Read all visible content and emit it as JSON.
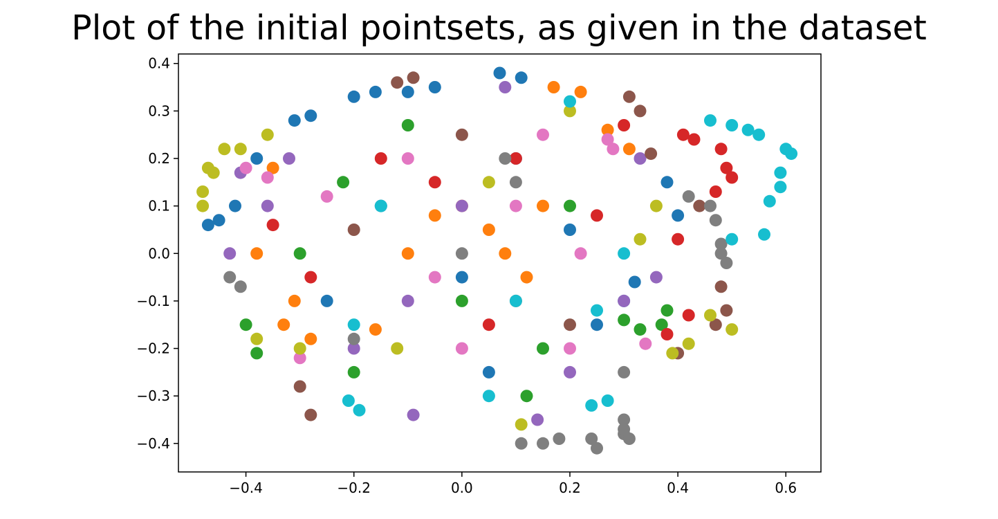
{
  "chart_data": {
    "type": "scatter",
    "title": "Plot of the initial pointsets, as given in the dataset",
    "xlabel": "",
    "ylabel": "",
    "xlim": [
      -0.525,
      0.665
    ],
    "ylim": [
      -0.46,
      0.42
    ],
    "x_ticks": [
      -0.4,
      -0.2,
      0.0,
      0.2,
      0.4,
      0.6
    ],
    "x_tick_labels": [
      "−0.4",
      "−0.2",
      "0.0",
      "0.2",
      "0.4",
      "0.6"
    ],
    "y_ticks": [
      0.4,
      0.3,
      0.2,
      0.1,
      0.0,
      -0.1,
      -0.2,
      -0.3,
      -0.4
    ],
    "y_tick_labels": [
      "0.4",
      "0.3",
      "0.2",
      "0.1",
      "0.0",
      "−0.1",
      "−0.2",
      "−0.3",
      "−0.4"
    ],
    "grid": false,
    "legend": "none",
    "series": [
      {
        "color": "#1f77b4",
        "points": [
          [
            0.07,
            0.38
          ],
          [
            0.11,
            0.37
          ],
          [
            -0.2,
            0.33
          ],
          [
            -0.16,
            0.34
          ],
          [
            -0.45,
            0.07
          ],
          [
            -0.47,
            0.06
          ],
          [
            -0.31,
            0.28
          ],
          [
            -0.28,
            0.29
          ],
          [
            0.4,
            0.08
          ],
          [
            0.3,
            -0.1
          ],
          [
            0.32,
            -0.06
          ],
          [
            -0.05,
            0.35
          ],
          [
            -0.1,
            0.34
          ],
          [
            -0.38,
            0.2
          ],
          [
            -0.42,
            0.1
          ],
          [
            0.25,
            -0.15
          ],
          [
            0.1,
            0.2
          ],
          [
            0.0,
            -0.05
          ],
          [
            -0.15,
            0.1
          ],
          [
            0.2,
            0.05
          ],
          [
            -0.25,
            -0.1
          ],
          [
            0.05,
            -0.25
          ],
          [
            0.38,
            0.15
          ]
        ]
      },
      {
        "color": "#ff7f0e",
        "points": [
          [
            0.17,
            0.35
          ],
          [
            0.22,
            0.34
          ],
          [
            -0.35,
            0.18
          ],
          [
            -0.38,
            0.0
          ],
          [
            -0.31,
            -0.1
          ],
          [
            -0.33,
            -0.15
          ],
          [
            0.05,
            0.05
          ],
          [
            0.0,
            0.1
          ],
          [
            -0.1,
            0.0
          ],
          [
            0.12,
            -0.05
          ],
          [
            0.27,
            0.26
          ],
          [
            0.31,
            0.22
          ],
          [
            -0.16,
            -0.16
          ],
          [
            -0.28,
            -0.18
          ],
          [
            0.15,
            0.1
          ],
          [
            -0.05,
            0.08
          ],
          [
            0.08,
            0.0
          ]
        ]
      },
      {
        "color": "#2ca02c",
        "points": [
          [
            -0.4,
            -0.15
          ],
          [
            -0.38,
            -0.21
          ],
          [
            0.38,
            -0.12
          ],
          [
            0.37,
            -0.15
          ],
          [
            -0.2,
            -0.25
          ],
          [
            0.12,
            -0.3
          ],
          [
            0.3,
            -0.14
          ],
          [
            -0.3,
            0.0
          ],
          [
            0.2,
            0.1
          ],
          [
            -0.1,
            0.27
          ],
          [
            0.0,
            -0.1
          ],
          [
            0.15,
            -0.2
          ],
          [
            -0.22,
            0.15
          ],
          [
            0.33,
            -0.16
          ]
        ]
      },
      {
        "color": "#d62728",
        "points": [
          [
            0.5,
            0.16
          ],
          [
            0.48,
            0.22
          ],
          [
            0.47,
            0.13
          ],
          [
            0.49,
            0.18
          ],
          [
            0.41,
            0.25
          ],
          [
            0.43,
            0.24
          ],
          [
            0.38,
            -0.17
          ],
          [
            0.42,
            -0.13
          ],
          [
            -0.28,
            -0.05
          ],
          [
            0.1,
            0.2
          ],
          [
            -0.15,
            0.2
          ],
          [
            0.25,
            0.08
          ],
          [
            0.3,
            0.27
          ],
          [
            -0.35,
            0.06
          ],
          [
            0.05,
            -0.15
          ],
          [
            0.4,
            0.03
          ],
          [
            -0.05,
            0.15
          ]
        ]
      },
      {
        "color": "#9467bd",
        "points": [
          [
            -0.41,
            0.17
          ],
          [
            -0.43,
            0.0
          ],
          [
            -0.09,
            -0.34
          ],
          [
            0.14,
            -0.35
          ],
          [
            0.33,
            0.2
          ],
          [
            -0.32,
            0.2
          ],
          [
            0.08,
            0.35
          ],
          [
            -0.2,
            -0.2
          ],
          [
            0.3,
            -0.1
          ],
          [
            0.0,
            0.1
          ],
          [
            -0.1,
            -0.1
          ],
          [
            0.2,
            -0.25
          ],
          [
            -0.36,
            0.1
          ],
          [
            0.36,
            -0.05
          ]
        ]
      },
      {
        "color": "#8c564b",
        "points": [
          [
            0.48,
            -0.07
          ],
          [
            0.49,
            -0.12
          ],
          [
            0.47,
            -0.15
          ],
          [
            0.35,
            0.21
          ],
          [
            0.33,
            0.3
          ],
          [
            0.31,
            0.33
          ],
          [
            -0.28,
            -0.34
          ],
          [
            -0.3,
            -0.28
          ],
          [
            -0.09,
            0.37
          ],
          [
            0.4,
            -0.21
          ],
          [
            -0.12,
            0.36
          ],
          [
            0.1,
            -0.1
          ],
          [
            -0.2,
            0.05
          ],
          [
            0.2,
            -0.15
          ],
          [
            0.0,
            0.25
          ],
          [
            0.44,
            0.1
          ]
        ]
      },
      {
        "color": "#e377c2",
        "points": [
          [
            -0.4,
            0.18
          ],
          [
            -0.36,
            0.16
          ],
          [
            0.27,
            0.24
          ],
          [
            0.28,
            0.22
          ],
          [
            0.1,
            0.1
          ],
          [
            -0.1,
            0.2
          ],
          [
            0.2,
            -0.2
          ],
          [
            0.34,
            -0.19
          ],
          [
            -0.25,
            0.12
          ],
          [
            0.15,
            0.25
          ],
          [
            0.0,
            -0.2
          ],
          [
            -0.3,
            -0.22
          ],
          [
            0.22,
            0.0
          ],
          [
            -0.05,
            -0.05
          ]
        ]
      },
      {
        "color": "#7f7f7f",
        "points": [
          [
            0.24,
            -0.39
          ],
          [
            0.25,
            -0.41
          ],
          [
            0.3,
            -0.38
          ],
          [
            0.31,
            -0.39
          ],
          [
            0.3,
            -0.35
          ],
          [
            0.3,
            -0.37
          ],
          [
            0.18,
            -0.39
          ],
          [
            0.15,
            -0.4
          ],
          [
            0.11,
            -0.4
          ],
          [
            0.47,
            0.07
          ],
          [
            0.48,
            0.02
          ],
          [
            0.48,
            0.0
          ],
          [
            0.49,
            -0.02
          ],
          [
            -0.41,
            -0.07
          ],
          [
            -0.43,
            -0.05
          ],
          [
            0.0,
            0.0
          ],
          [
            0.1,
            0.15
          ],
          [
            -0.2,
            -0.18
          ],
          [
            0.08,
            0.2
          ],
          [
            0.3,
            -0.25
          ],
          [
            0.42,
            0.12
          ],
          [
            0.46,
            0.1
          ]
        ]
      },
      {
        "color": "#bcbd22",
        "points": [
          [
            -0.47,
            0.18
          ],
          [
            -0.48,
            0.13
          ],
          [
            -0.44,
            0.22
          ],
          [
            -0.41,
            0.22
          ],
          [
            -0.46,
            0.17
          ],
          [
            -0.48,
            0.1
          ],
          [
            0.5,
            -0.16
          ],
          [
            0.46,
            -0.13
          ],
          [
            0.42,
            -0.19
          ],
          [
            0.39,
            -0.21
          ],
          [
            0.11,
            -0.36
          ],
          [
            0.36,
            0.1
          ],
          [
            -0.36,
            0.25
          ],
          [
            -0.38,
            -0.18
          ],
          [
            0.05,
            0.15
          ],
          [
            -0.12,
            -0.2
          ],
          [
            0.2,
            0.3
          ],
          [
            0.33,
            0.03
          ],
          [
            -0.3,
            -0.2
          ]
        ]
      },
      {
        "color": "#17becf",
        "points": [
          [
            0.61,
            0.21
          ],
          [
            0.6,
            0.22
          ],
          [
            0.59,
            0.17
          ],
          [
            0.59,
            0.14
          ],
          [
            0.55,
            0.25
          ],
          [
            0.53,
            0.26
          ],
          [
            0.5,
            0.27
          ],
          [
            0.46,
            0.28
          ],
          [
            0.57,
            0.11
          ],
          [
            0.56,
            0.04
          ],
          [
            0.5,
            0.03
          ],
          [
            0.24,
            -0.32
          ],
          [
            0.27,
            -0.31
          ],
          [
            -0.19,
            -0.33
          ],
          [
            -0.21,
            -0.31
          ],
          [
            0.1,
            -0.1
          ],
          [
            -0.2,
            -0.15
          ],
          [
            0.3,
            0.0
          ],
          [
            0.2,
            0.32
          ],
          [
            0.05,
            -0.3
          ],
          [
            -0.15,
            0.1
          ],
          [
            0.25,
            -0.12
          ]
        ]
      }
    ]
  }
}
